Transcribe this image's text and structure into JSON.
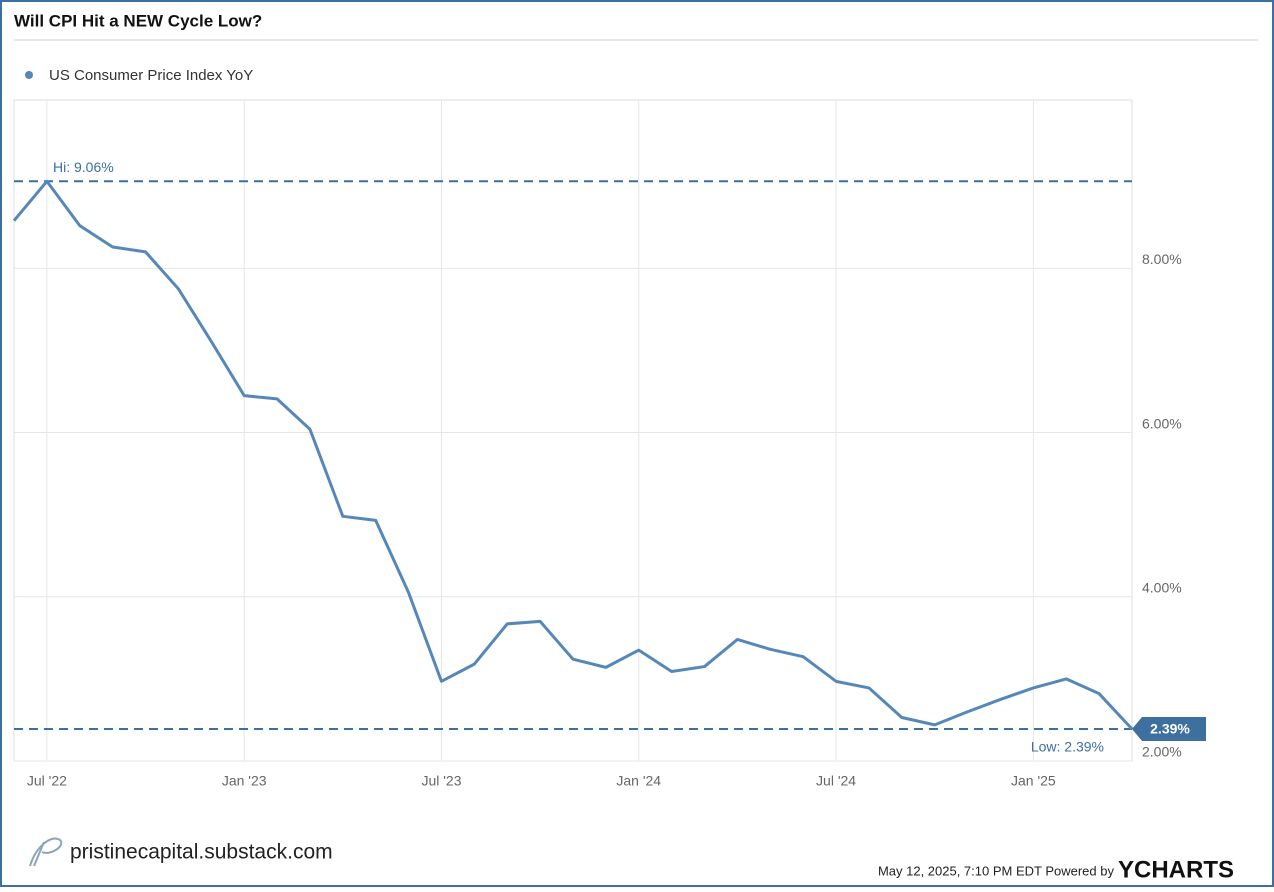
{
  "chart_data": {
    "type": "line",
    "title": "Will CPI Hit a NEW Cycle Low?",
    "x": [
      "2022-05",
      "2022-06",
      "2022-07",
      "2022-08",
      "2022-09",
      "2022-10",
      "2022-11",
      "2022-12",
      "2023-01",
      "2023-02",
      "2023-03",
      "2023-04",
      "2023-05",
      "2023-06",
      "2023-07",
      "2023-08",
      "2023-09",
      "2023-10",
      "2023-11",
      "2023-12",
      "2024-01",
      "2024-02",
      "2024-03",
      "2024-04",
      "2024-05",
      "2024-06",
      "2024-07",
      "2024-08",
      "2024-09",
      "2024-10",
      "2024-11",
      "2024-12",
      "2025-01",
      "2025-02",
      "2025-03"
    ],
    "series": [
      {
        "name": "US Consumer Price Index YoY",
        "color": "#5588b8",
        "values": [
          8.58,
          9.06,
          8.52,
          8.26,
          8.2,
          7.75,
          7.11,
          6.45,
          6.41,
          6.04,
          4.98,
          4.93,
          4.05,
          2.97,
          3.18,
          3.67,
          3.7,
          3.24,
          3.14,
          3.35,
          3.09,
          3.15,
          3.48,
          3.36,
          3.27,
          2.97,
          2.89,
          2.53,
          2.44,
          2.6,
          2.75,
          2.89,
          3.0,
          2.82,
          2.39
        ]
      }
    ],
    "xlim": [
      "2022-06",
      "2025-04"
    ],
    "xticks": [
      {
        "value": "2022-07",
        "label": "Jul '22"
      },
      {
        "value": "2023-01",
        "label": "Jan '23"
      },
      {
        "value": "2023-07",
        "label": "Jul '23"
      },
      {
        "value": "2024-01",
        "label": "Jan '24"
      },
      {
        "value": "2024-07",
        "label": "Jul '24"
      },
      {
        "value": "2025-01",
        "label": "Jan '25"
      }
    ],
    "ylim": [
      2,
      10.05
    ],
    "yticks": [
      {
        "value": 2,
        "label": "2.00%"
      },
      {
        "value": 4,
        "label": "4.00%"
      },
      {
        "value": 6,
        "label": "6.00%"
      },
      {
        "value": 8,
        "label": "8.00%"
      }
    ],
    "grid": true,
    "reference_lines": [
      {
        "value": 9.06,
        "label": "Hi: 9.06%"
      },
      {
        "value": 2.39,
        "label": "Low: 2.39%"
      }
    ],
    "end_label": "2.39%",
    "source": "pristinecapital.substack.com",
    "timestamp": "May 12, 2025, 7:10 PM EDT Powered by",
    "brand": "YCHARTS"
  }
}
